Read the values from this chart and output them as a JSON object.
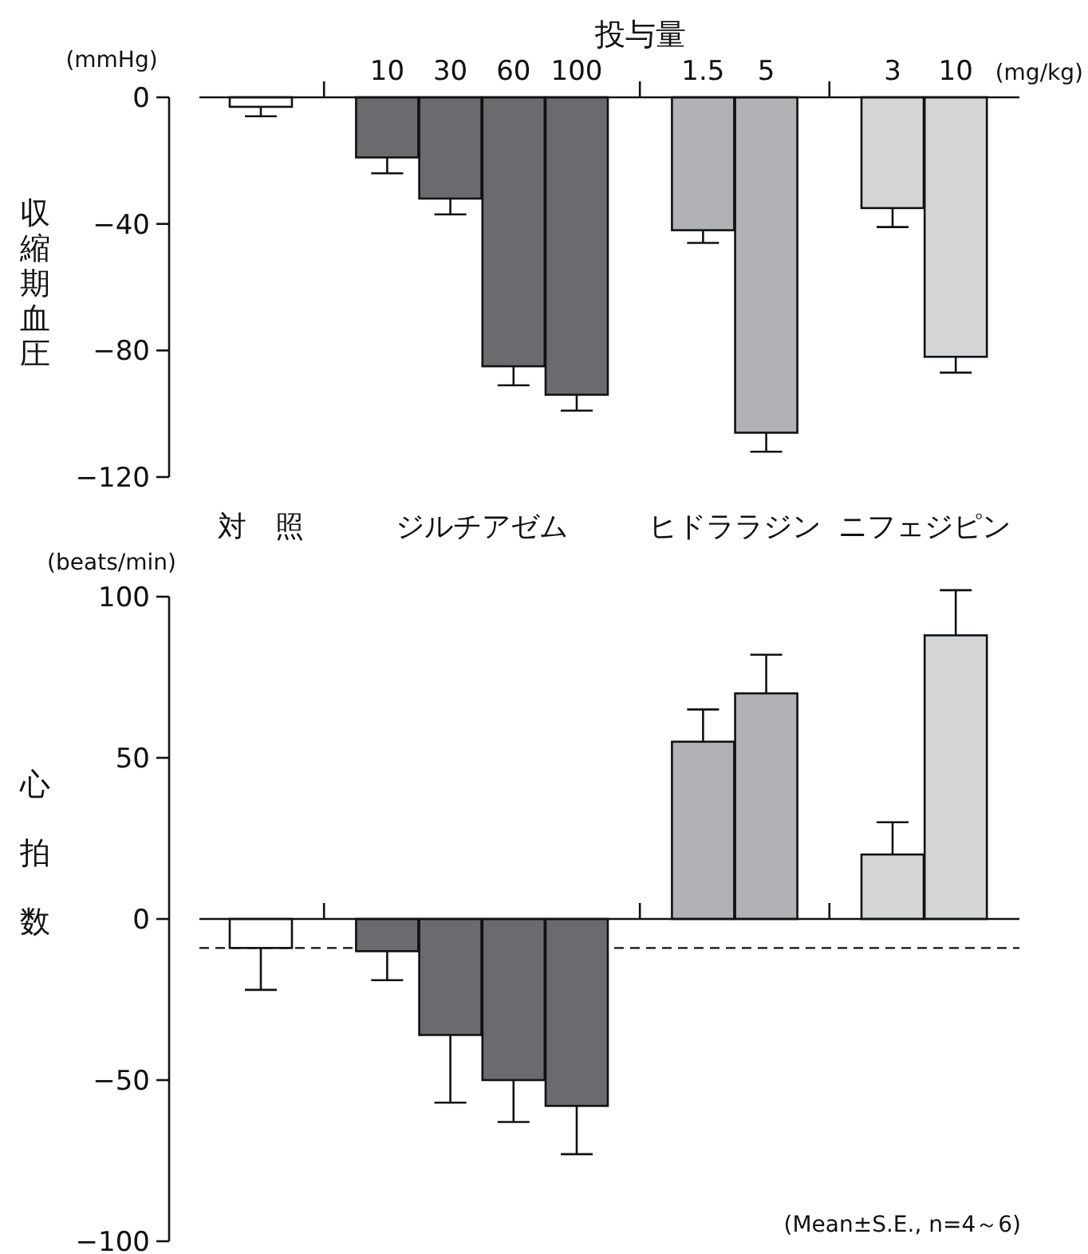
{
  "chart_data": [
    {
      "type": "bar",
      "xlabel": "投与量",
      "ylabel": "収縮期血圧",
      "categories": [
        null,
        "10",
        "30",
        "60",
        "100",
        "1.5",
        "5",
        "3",
        "10"
      ],
      "values": [
        -3,
        -19,
        -32,
        -85,
        -94,
        -42,
        -106,
        -35,
        -82
      ],
      "errors": [
        3,
        5,
        5,
        6,
        5,
        4,
        6,
        6,
        5
      ],
      "colors": [
        "#ffffff",
        "#6a6b6f",
        "#6a6b6f",
        "#6a6b6f",
        "#6a6b6f",
        "#b1b2b6",
        "#b1b2b6",
        "#d4d5d7",
        "#d4d5d7"
      ],
      "ylim": [
        -120,
        0
      ],
      "yticks": [
        0,
        -40,
        -80,
        -120
      ],
      "annotations": [
        "(mmHg)",
        "(mg/kg)",
        "対　照",
        "ジルチアゼム",
        "ヒドララジン",
        "ニフェジピン"
      ]
    },
    {
      "type": "bar",
      "ylabel": "心拍数",
      "categories": [
        null,
        "10",
        "30",
        "60",
        "100",
        "1.5",
        "5",
        "3",
        "10"
      ],
      "tick_labels": "y",
      "values": [
        -9,
        -10,
        -36,
        -50,
        -58,
        55,
        70,
        20,
        88
      ],
      "errors": [
        13,
        9,
        21,
        13,
        15,
        10,
        12,
        10,
        14
      ],
      "colors": [
        "#ffffff",
        "#6a6b6f",
        "#6a6b6f",
        "#6a6b6f",
        "#6a6b6f",
        "#b1b2b6",
        "#b1b2b6",
        "#d4d5d7",
        "#d4d5d7"
      ],
      "ylim": [
        -100,
        100
      ],
      "yticks": [
        100,
        50,
        0,
        -50,
        -100
      ],
      "ref_lines": [
        {
          "axis": "y",
          "value": -9,
          "line_style": "dashed"
        }
      ],
      "annotations": [
        "(beats/min)",
        "(Mean±S.E., n=4～6)"
      ]
    }
  ]
}
